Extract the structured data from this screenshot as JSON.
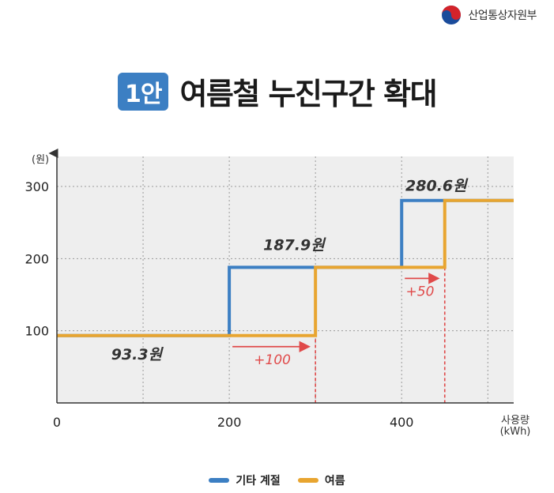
{
  "ministry": {
    "name": "산업통상자원부",
    "emblem": "taegeuk-emblem-icon"
  },
  "title": {
    "badge": "1안",
    "text": "여름철 누진구간 확대"
  },
  "colors": {
    "other": "#3c7fc3",
    "summer": "#e8a530",
    "arrow": "#e04a4a",
    "plot_bg": "#eeeeee"
  },
  "chart_data": {
    "type": "line",
    "step": true,
    "title": "",
    "ylabel": "(원)",
    "xlabel": "사용량\n(kWh)",
    "xlim": [
      0,
      530
    ],
    "ylim": [
      0,
      300
    ],
    "xticks": [
      0,
      200,
      400
    ],
    "yticks": [
      100,
      200,
      300
    ],
    "grid": true,
    "legend_position": "bottom",
    "series": [
      {
        "name": "기타 계절",
        "x": [
          0,
          200,
          200,
          400,
          400,
          530
        ],
        "y": [
          93.3,
          93.3,
          187.9,
          187.9,
          280.6,
          280.6
        ]
      },
      {
        "name": "여름",
        "x": [
          0,
          300,
          300,
          450,
          450,
          530
        ],
        "y": [
          93.3,
          93.3,
          187.9,
          187.9,
          280.6,
          280.6
        ]
      }
    ],
    "value_labels": [
      {
        "text": "93.3원",
        "x": 120,
        "y": 93.3
      },
      {
        "text": "187.9원",
        "x": 275,
        "y": 187.9
      },
      {
        "text": "280.6원",
        "x": 440,
        "y": 280.6
      }
    ],
    "annotations": [
      {
        "text": "+100",
        "from_x": 200,
        "to_x": 300,
        "y": 93.3
      },
      {
        "text": "+50",
        "from_x": 400,
        "to_x": 450,
        "y": 187.9
      }
    ],
    "guide_lines_x": [
      300,
      450
    ]
  }
}
